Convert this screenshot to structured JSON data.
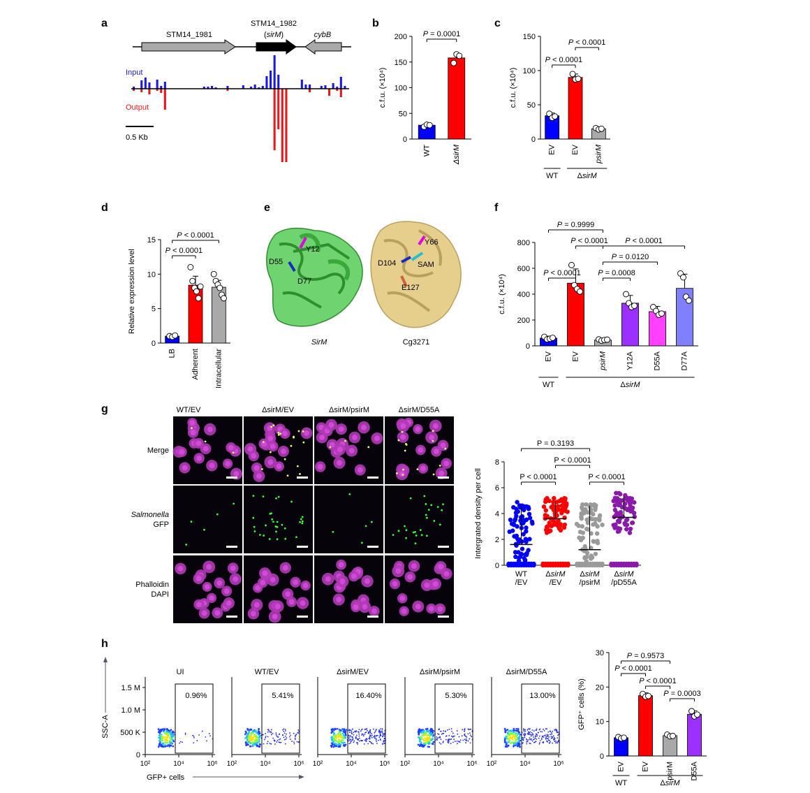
{
  "panels": {
    "a": {
      "label": "a",
      "genes": [
        {
          "name": "STM14_1981",
          "dir": "right",
          "color": "#a9a9a9"
        },
        {
          "name": "STM14_1982",
          "sub": "sirM",
          "dir": "right",
          "color": "#000000"
        },
        {
          "name": "cybB",
          "dir": "left",
          "color": "#a9a9a9"
        }
      ],
      "input_label": "Input",
      "output_label": "Output",
      "input_color": "#1a1ae6",
      "output_color": "#e61a1a",
      "scale_label": "0.5 Kb",
      "input_bars": [
        3,
        0,
        12,
        16,
        9,
        0,
        13,
        4,
        10,
        0,
        0,
        0,
        0,
        0,
        0,
        0,
        0,
        0,
        3,
        3,
        4,
        2,
        0,
        0,
        4,
        0,
        0,
        0,
        5,
        0,
        3,
        6,
        2,
        4,
        18,
        26,
        48,
        20,
        0,
        0,
        0,
        0,
        0,
        13,
        6,
        6,
        0,
        0,
        4,
        5,
        0,
        8,
        3,
        17,
        4
      ],
      "output_bars": [
        3,
        0,
        5,
        0,
        8,
        0,
        3,
        6,
        30,
        0,
        0,
        0,
        0,
        0,
        0,
        0,
        0,
        0,
        0,
        0,
        0,
        0,
        0,
        0,
        3,
        0,
        0,
        0,
        0,
        0,
        0,
        0,
        0,
        0,
        0,
        0,
        88,
        58,
        105,
        105,
        0,
        0,
        0,
        0,
        0,
        5,
        0,
        0,
        0,
        0,
        10,
        0,
        3,
        12,
        0
      ]
    },
    "b": {
      "label": "b",
      "ylabel": "c.f.u. (×10⁴)",
      "ymax": 200,
      "yticks": [
        0,
        50,
        100,
        150,
        200
      ],
      "bars": [
        {
          "cat": "WT",
          "italic": false,
          "value": 27,
          "sd": 3,
          "color": "#0000ff",
          "points": [
            24,
            28,
            27
          ]
        },
        {
          "cat": "ΔsirM",
          "italic": true,
          "value": 158,
          "sd": 10,
          "color": "#ff0000",
          "points": [
            148,
            165,
            162
          ]
        }
      ],
      "comparisons": [
        {
          "from": 0,
          "to": 1,
          "label": "P = 0.0001",
          "level": 0
        }
      ]
    },
    "c": {
      "label": "c",
      "ylabel": "c.f.u. (×10⁴)",
      "ymax": 150,
      "yticks": [
        0,
        50,
        100,
        150
      ],
      "bars": [
        {
          "cat": "EV",
          "italic": false,
          "value": 34,
          "sd": 4,
          "color": "#0000ff",
          "points": [
            37,
            31,
            33
          ]
        },
        {
          "cat": "EV",
          "italic": false,
          "value": 90,
          "sd": 5,
          "color": "#ff0000",
          "points": [
            95,
            87,
            88
          ]
        },
        {
          "cat": "psirM",
          "italic": true,
          "value": 15,
          "sd": 2,
          "color": "#a9a9a9",
          "points": [
            16,
            14,
            15
          ]
        }
      ],
      "comparisons": [
        {
          "from": 0,
          "to": 1,
          "label": "P < 0.0001",
          "level": 0
        },
        {
          "from": 1,
          "to": 2,
          "label": "P < 0.0001",
          "level": 1
        }
      ],
      "groups": [
        {
          "name": "WT",
          "from": 0,
          "to": 0
        },
        {
          "name": "ΔsirM",
          "from": 1,
          "to": 2
        }
      ]
    },
    "d": {
      "label": "d",
      "ylabel": "Relative expression level",
      "ymax": 15,
      "yticks": [
        0,
        5,
        10,
        15
      ],
      "bars": [
        {
          "cat": "LB",
          "italic": false,
          "value": 1,
          "sd": 0.2,
          "color": "#0000ff",
          "points": [
            1,
            0.9,
            1.1
          ]
        },
        {
          "cat": "Adherent",
          "italic": false,
          "value": 8.4,
          "sd": 1.3,
          "color": "#ff0000",
          "points": [
            11,
            9,
            8,
            7.5,
            6.5,
            8.2
          ]
        },
        {
          "cat": "Intracellular",
          "italic": false,
          "value": 8.1,
          "sd": 1.0,
          "color": "#a9a9a9",
          "points": [
            10,
            9,
            8.5,
            8,
            7,
            6.5
          ]
        }
      ],
      "comparisons": [
        {
          "from": 0,
          "to": 1,
          "label": "P < 0.0001",
          "level": 0
        },
        {
          "from": 0,
          "to": 2,
          "label": "P < 0.0001",
          "level": 1
        }
      ]
    },
    "e": {
      "label": "e",
      "left_name": "SirM",
      "right_name": "Cg3271",
      "left_residues": [
        "Y12",
        "D55",
        "D77"
      ],
      "right_residues": [
        "Y66",
        "D104",
        "SAM",
        "E127"
      ],
      "left_color": "#4cc44c",
      "right_color": "#e6cf8c"
    },
    "f": {
      "label": "f",
      "ylabel": "c.f.u. (×10⁴)",
      "ymax": 800,
      "yticks": [
        0,
        200,
        400,
        600,
        800
      ],
      "bars": [
        {
          "cat": "EV",
          "italic": false,
          "value": 60,
          "sd": 15,
          "color": "#0000ff",
          "points": [
            70,
            50,
            55,
            62
          ]
        },
        {
          "cat": "EV",
          "italic": false,
          "value": 485,
          "sd": 110,
          "color": "#ff0000",
          "points": [
            625,
            470,
            440,
            420
          ]
        },
        {
          "cat": "psirM",
          "italic": true,
          "value": 45,
          "sd": 8,
          "color": "#a9a9a9",
          "points": [
            50,
            40,
            45,
            48
          ]
        },
        {
          "cat": "Y12A",
          "italic": false,
          "value": 330,
          "sd": 60,
          "color": "#9b30ff",
          "points": [
            400,
            330,
            300,
            310
          ]
        },
        {
          "cat": "D55A",
          "italic": false,
          "value": 265,
          "sd": 40,
          "color": "#ff40ff",
          "points": [
            300,
            270,
            240,
            250
          ]
        },
        {
          "cat": "D77A",
          "italic": false,
          "value": 445,
          "sd": 110,
          "color": "#8080ff",
          "points": [
            560,
            530,
            380,
            350
          ]
        }
      ],
      "comparisons": [
        {
          "from": 0,
          "to": 1,
          "label": "P < 0.0001",
          "level": 0
        },
        {
          "from": 2,
          "to": 3,
          "label": "P = 0.0008",
          "level": 0
        },
        {
          "from": 2,
          "to": 4,
          "label": "P = 0.0120",
          "level": 1
        },
        {
          "from": 1,
          "to": 2,
          "label": "P < 0.0001",
          "level": 2
        },
        {
          "from": 2,
          "to": 5,
          "label": "P < 0.0001",
          "level": 2
        },
        {
          "from": 0,
          "to": 2,
          "label": "P = 0.9999",
          "level": 3
        }
      ],
      "groups": [
        {
          "name": "WT",
          "from": 0,
          "to": 0
        },
        {
          "name": "ΔsirM",
          "from": 1,
          "to": 5
        }
      ]
    },
    "g": {
      "label": "g",
      "columns": [
        "WT/EV",
        "ΔsirM/EV",
        "ΔsirM/psirM",
        "ΔsirM/D55A"
      ],
      "rows": [
        {
          "lines": [
            "Merge"
          ]
        },
        {
          "lines": [
            "Salmonella",
            "GFP"
          ],
          "italic_first": true
        },
        {
          "lines": [
            "Phalloidin",
            "DAPI"
          ]
        }
      ],
      "scatter": {
        "ylabel": "Intergrated density per cell",
        "ymax": 8,
        "yticks": [
          0,
          2,
          4,
          6,
          8
        ],
        "groups": [
          {
            "cat": [
              "WT",
              "/EV"
            ],
            "color": "#0000ff",
            "mean": 1.6,
            "hi": 4.9
          },
          {
            "cat": [
              "ΔsirM",
              "/EV"
            ],
            "color": "#ff0000",
            "mean": 3.6,
            "hi": 5.2
          },
          {
            "cat": [
              "ΔsirM",
              "/psirM"
            ],
            "color": "#9a9a9a",
            "mean": 1.2,
            "hi": 4.9
          },
          {
            "cat": [
              "ΔsirM",
              "/pD55A"
            ],
            "color": "#8a1aaa",
            "mean": 3.7,
            "hi": 5.6
          }
        ],
        "comparisons": [
          {
            "from": 0,
            "to": 1,
            "label": "P < 0.0001",
            "level": 0
          },
          {
            "from": 2,
            "to": 3,
            "label": "P < 0.0001",
            "level": 0
          },
          {
            "from": 1,
            "to": 2,
            "label": "P < 0.0001",
            "level": 1
          },
          {
            "from": 0,
            "to": 2,
            "label": "P = 0.3193",
            "level": 2
          }
        ]
      }
    },
    "h": {
      "label": "h",
      "plots": [
        {
          "title": "UI",
          "percent": "0.96%",
          "spread": 0.1
        },
        {
          "title": "WT/EV",
          "percent": "5.41%",
          "spread": 0.45
        },
        {
          "title": "ΔsirM/EV",
          "percent": "16.40%",
          "spread": 1.0
        },
        {
          "title": "ΔsirM/psirM",
          "percent": "5.30%",
          "spread": 0.55
        },
        {
          "title": "ΔsirM/D55A",
          "percent": "13.00%",
          "spread": 0.9
        }
      ],
      "yaxis_name": "SSC-A",
      "yticks": [
        "0",
        "500 K",
        "1.0 M",
        "1.5 M"
      ],
      "xticks": [
        "10²",
        "10⁴",
        "10⁶"
      ],
      "xaxis_name": "GFP+ cells",
      "bar_chart": {
        "ylabel": "GFP⁺ cells (%)",
        "ymax": 30,
        "yticks": [
          0,
          10,
          20,
          30
        ],
        "bars": [
          {
            "cat": "EV",
            "italic": false,
            "value": 5.3,
            "sd": 0.4,
            "color": "#0000ff",
            "points": [
              5.5,
              5.1,
              5.3
            ]
          },
          {
            "cat": "EV",
            "italic": false,
            "value": 17.5,
            "sd": 0.8,
            "color": "#ff0000",
            "points": [
              18,
              17.2,
              17.4
            ]
          },
          {
            "cat": "psirM",
            "italic": false,
            "value": 5.9,
            "sd": 0.4,
            "color": "#a9a9a9",
            "points": [
              6.2,
              5.7,
              5.8
            ]
          },
          {
            "cat": "D55A",
            "italic": false,
            "value": 12.1,
            "sd": 1.0,
            "color": "#9b30ff",
            "points": [
              13,
              11.5,
              12
            ]
          }
        ],
        "comparisons": [
          {
            "from": 2,
            "to": 3,
            "label": "P = 0.0003",
            "level": 0
          },
          {
            "from": 1,
            "to": 2,
            "label": "P < 0.0001",
            "level": 1
          },
          {
            "from": 0,
            "to": 1,
            "label": "P < 0.0001",
            "level": 2
          },
          {
            "from": 0,
            "to": 2,
            "label": "P = 0.9573",
            "level": 3
          }
        ],
        "groups": [
          {
            "name": "WT",
            "from": 0,
            "to": 0
          },
          {
            "name": "ΔsirM",
            "from": 1,
            "to": 3
          }
        ]
      }
    }
  },
  "chart_data": [
    {
      "type": "bar",
      "panel": "b",
      "categories": [
        "WT",
        "ΔsirM"
      ],
      "values": [
        27,
        158
      ],
      "ylabel": "c.f.u. (×10⁴)",
      "ylim": [
        0,
        200
      ]
    },
    {
      "type": "bar",
      "panel": "c",
      "categories": [
        "WT EV",
        "ΔsirM EV",
        "ΔsirM psirM"
      ],
      "values": [
        34,
        90,
        15
      ],
      "ylabel": "c.f.u. (×10⁴)",
      "ylim": [
        0,
        150
      ]
    },
    {
      "type": "bar",
      "panel": "d",
      "categories": [
        "LB",
        "Adherent",
        "Intracellular"
      ],
      "values": [
        1,
        8.4,
        8.1
      ],
      "ylabel": "Relative expression level",
      "ylim": [
        0,
        15
      ]
    },
    {
      "type": "bar",
      "panel": "f",
      "categories": [
        "WT EV",
        "ΔsirM EV",
        "ΔsirM psirM",
        "ΔsirM Y12A",
        "ΔsirM D55A",
        "ΔsirM D77A"
      ],
      "values": [
        60,
        485,
        45,
        330,
        265,
        445
      ],
      "ylabel": "c.f.u. (×10⁴)",
      "ylim": [
        0,
        800
      ]
    },
    {
      "type": "scatter",
      "panel": "g",
      "categories": [
        "WT/EV",
        "ΔsirM/EV",
        "ΔsirM/psirM",
        "ΔsirM/pD55A"
      ],
      "values": [
        1.6,
        3.6,
        1.2,
        3.7
      ],
      "ylabel": "Intergrated density per cell",
      "ylim": [
        0,
        8
      ]
    },
    {
      "type": "bar",
      "panel": "h",
      "categories": [
        "WT EV",
        "ΔsirM EV",
        "ΔsirM psirM",
        "ΔsirM D55A"
      ],
      "values": [
        5.3,
        17.5,
        5.9,
        12.1
      ],
      "ylabel": "GFP⁺ cells (%)",
      "ylim": [
        0,
        30
      ]
    }
  ]
}
